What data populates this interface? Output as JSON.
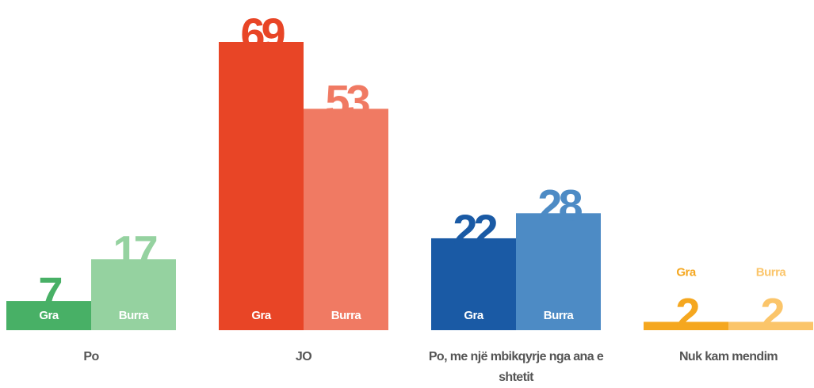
{
  "chart_data": {
    "type": "bar",
    "categories": [
      "Po",
      "JO",
      "Po, me një mbikqyrje nga ana e shtetit",
      "Nuk kam mendim"
    ],
    "series": [
      {
        "name": "Gra",
        "colors": [
          "#48b066",
          "#e84526",
          "#1a5aa5",
          "#f5a71f"
        ],
        "values": [
          7,
          69,
          22,
          2
        ]
      },
      {
        "name": "Burra",
        "colors": [
          "#95d2a0",
          "#f07a63",
          "#4d8bc5",
          "#fbc56a"
        ],
        "values": [
          17,
          53,
          28,
          2
        ]
      }
    ]
  }
}
